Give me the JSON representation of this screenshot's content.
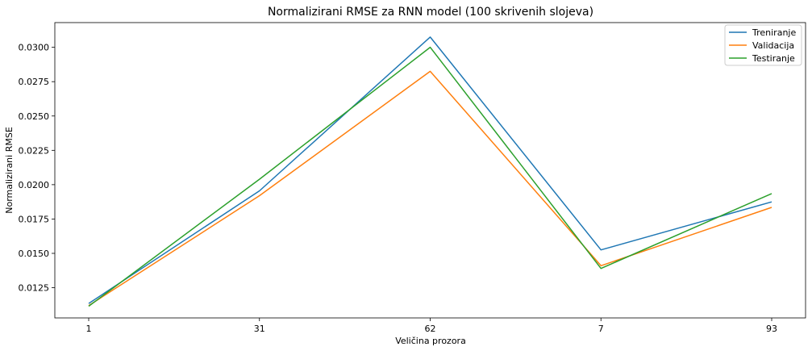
{
  "chart_data": {
    "type": "line",
    "title": "Normalizirani RMSE za RNN model (100 skrivenih slojeva)",
    "xlabel": "Veličina prozora",
    "ylabel": "Normalizirani RMSE",
    "categories": [
      "1",
      "31",
      "62",
      "7",
      "93"
    ],
    "ylim": [
      0.0103,
      0.0318
    ],
    "yticks": [
      "0.0125",
      "0.0150",
      "0.0175",
      "0.0200",
      "0.0225",
      "0.0250",
      "0.0275",
      "0.0300"
    ],
    "ytick_values": [
      0.0125,
      0.015,
      0.0175,
      0.02,
      0.0225,
      0.025,
      0.0275,
      0.03
    ],
    "grid": false,
    "legend_position": "top-right",
    "series": [
      {
        "name": "Treniranje",
        "color": "#1f77b4",
        "values": [
          0.01135,
          0.01955,
          0.03075,
          0.01525,
          0.01875
        ]
      },
      {
        "name": "Validacija",
        "color": "#ff7f0e",
        "values": [
          0.0112,
          0.0192,
          0.02825,
          0.0141,
          0.01835
        ]
      },
      {
        "name": "Testiranje",
        "color": "#2ca02c",
        "values": [
          0.01115,
          0.0204,
          0.03,
          0.0139,
          0.01935
        ]
      }
    ]
  }
}
